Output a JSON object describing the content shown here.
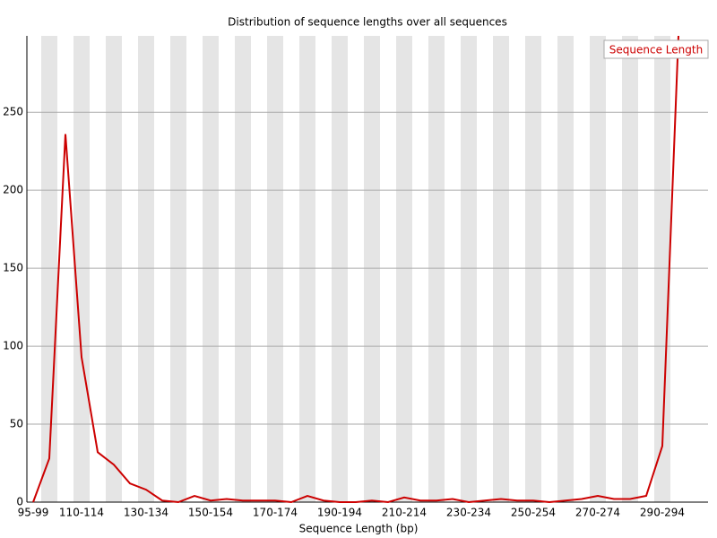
{
  "chart_data": {
    "type": "line",
    "title": "Distribution of sequence lengths over all sequences",
    "x_label": "Sequence Length (bp)",
    "categories": [
      "95-99",
      null,
      null,
      "110-114",
      null,
      null,
      null,
      "130-134",
      null,
      null,
      null,
      "150-154",
      null,
      null,
      null,
      "170-174",
      null,
      null,
      null,
      "190-194",
      null,
      null,
      null,
      "210-214",
      null,
      null,
      null,
      "230-234",
      null,
      null,
      null,
      "250-254",
      null,
      null,
      null,
      "270-274",
      null,
      null,
      null,
      "290-294",
      null
    ],
    "series": [
      {
        "name": "Sequence Length",
        "color": "#cc0000",
        "values": [
          0,
          28,
          236,
          93,
          32,
          24,
          12,
          8,
          1,
          0,
          4,
          1,
          2,
          1,
          1,
          1,
          0,
          4,
          1,
          0,
          0,
          1,
          0,
          3,
          1,
          1,
          2,
          0,
          1,
          2,
          1,
          1,
          0,
          1,
          2,
          4,
          2,
          2,
          4,
          36,
          299
        ]
      }
    ],
    "ylim": [
      0,
      299
    ],
    "yticks": [
      0,
      50,
      100,
      150,
      200,
      250
    ],
    "grid": true,
    "stripes": true,
    "legend": "top-right"
  }
}
